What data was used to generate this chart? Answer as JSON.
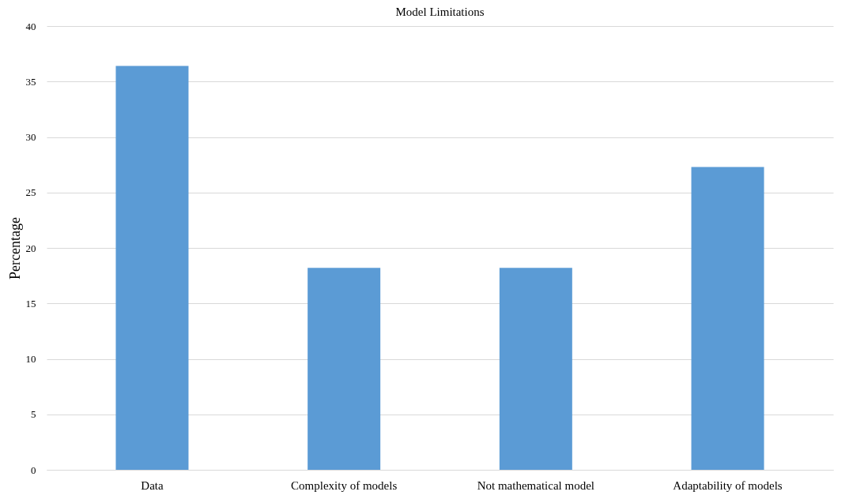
{
  "chart_data": {
    "type": "bar",
    "title": "Model Limitations",
    "ylabel": "Percentage",
    "categories": [
      "Data",
      "Complexity of models",
      "Not mathematical model",
      "Adaptability of models"
    ],
    "values": [
      36.4,
      18.2,
      18.2,
      27.3
    ],
    "color": "#5b9bd5",
    "ylim": [
      0,
      40
    ],
    "yticks": [
      0,
      5,
      10,
      15,
      20,
      25,
      30,
      35,
      40
    ],
    "grid": "y"
  }
}
